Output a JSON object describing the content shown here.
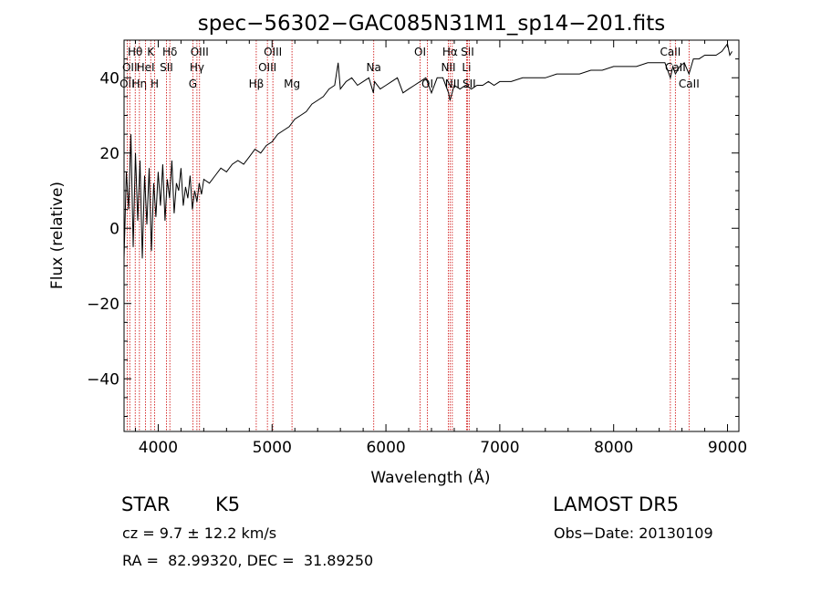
{
  "chart_data": {
    "type": "line",
    "title": "spec−56302−GAC085N31M1_sp14−201.fits",
    "xlabel": "Wavelength (Å)",
    "ylabel": "Flux (relative)",
    "xlim": [
      3700,
      9100
    ],
    "ylim": [
      -54,
      50
    ],
    "xticks": [
      {
        "value": 4000,
        "label": "4000"
      },
      {
        "value": 5000,
        "label": "5000"
      },
      {
        "value": 6000,
        "label": "6000"
      },
      {
        "value": 7000,
        "label": "7000"
      },
      {
        "value": 8000,
        "label": "8000"
      },
      {
        "value": 9000,
        "label": "9000"
      }
    ],
    "yticks": [
      {
        "value": -40,
        "label": "−40"
      },
      {
        "value": -20,
        "label": "−20"
      },
      {
        "value": 0,
        "label": "0"
      },
      {
        "value": 20,
        "label": "20"
      },
      {
        "value": 40,
        "label": "40"
      }
    ],
    "series": [
      {
        "color": "#000000",
        "x": [
          3700,
          3720,
          3740,
          3760,
          3780,
          3800,
          3820,
          3840,
          3860,
          3880,
          3900,
          3920,
          3940,
          3960,
          3980,
          4000,
          4020,
          4040,
          4060,
          4080,
          4100,
          4120,
          4140,
          4160,
          4180,
          4200,
          4220,
          4240,
          4260,
          4280,
          4300,
          4320,
          4340,
          4360,
          4380,
          4400,
          4450,
          4500,
          4550,
          4600,
          4650,
          4700,
          4750,
          4800,
          4850,
          4900,
          4950,
          5000,
          5050,
          5100,
          5150,
          5200,
          5250,
          5300,
          5350,
          5400,
          5450,
          5500,
          5550,
          5580,
          5600,
          5650,
          5700,
          5750,
          5800,
          5850,
          5890,
          5900,
          5950,
          6000,
          6050,
          6100,
          6150,
          6200,
          6250,
          6300,
          6350,
          6400,
          6450,
          6500,
          6550,
          6563,
          6600,
          6650,
          6700,
          6750,
          6800,
          6850,
          6900,
          6950,
          7000,
          7100,
          7200,
          7300,
          7400,
          7500,
          7600,
          7700,
          7800,
          7900,
          8000,
          8100,
          8200,
          8300,
          8400,
          8450,
          8498,
          8520,
          8542,
          8580,
          8620,
          8662,
          8700,
          8750,
          8800,
          8850,
          8900,
          8950,
          9000,
          9020,
          9040
        ],
        "y": [
          -8,
          15,
          5,
          25,
          -5,
          20,
          2,
          18,
          -8,
          14,
          1,
          16,
          -6,
          12,
          3,
          15,
          6,
          17,
          2,
          13,
          8,
          18,
          4,
          12,
          10,
          16,
          6,
          11,
          8,
          14,
          5,
          10,
          7,
          12,
          9,
          13,
          12,
          14,
          16,
          15,
          17,
          18,
          17,
          19,
          21,
          20,
          22,
          23,
          25,
          26,
          27,
          29,
          30,
          31,
          33,
          34,
          35,
          37,
          38,
          44,
          37,
          39,
          40,
          38,
          39,
          40,
          36,
          39,
          37,
          38,
          39,
          40,
          36,
          37,
          38,
          39,
          40,
          36,
          40,
          40,
          36,
          34,
          38,
          37,
          38,
          37,
          38,
          38,
          39,
          38,
          39,
          39,
          40,
          40,
          40,
          41,
          41,
          41,
          42,
          42,
          43,
          43,
          43,
          44,
          44,
          44,
          40,
          43,
          41,
          43,
          44,
          41,
          45,
          45,
          46,
          46,
          46,
          47,
          49,
          46,
          47
        ]
      }
    ],
    "lines": [
      {
        "x": 3727,
        "labels": [
          {
            "text": "OII",
            "row": 3
          }
        ]
      },
      {
        "x": 3750,
        "labels": [
          {
            "text": "OII",
            "row": 2
          }
        ]
      },
      {
        "x": 3798,
        "labels": [
          {
            "text": "Hθ",
            "row": 1
          }
        ]
      },
      {
        "x": 3835,
        "labels": [
          {
            "text": "Hη",
            "row": 3
          }
        ]
      },
      {
        "x": 3889,
        "labels": [
          {
            "text": "HeI",
            "row": 2
          }
        ]
      },
      {
        "x": 3934,
        "labels": [
          {
            "text": "K",
            "row": 1
          }
        ]
      },
      {
        "x": 3969,
        "labels": [
          {
            "text": "H",
            "row": 3
          }
        ]
      },
      {
        "x": 4072,
        "labels": [
          {
            "text": "SII",
            "row": 2
          }
        ]
      },
      {
        "x": 4102,
        "labels": [
          {
            "text": "Hδ",
            "row": 1
          }
        ]
      },
      {
        "x": 4304,
        "labels": [
          {
            "text": "G",
            "row": 3
          }
        ]
      },
      {
        "x": 4340,
        "labels": [
          {
            "text": "Hγ",
            "row": 2
          }
        ]
      },
      {
        "x": 4363,
        "labels": [
          {
            "text": "OIII",
            "row": 1
          }
        ]
      },
      {
        "x": 4861,
        "labels": [
          {
            "text": "Hβ",
            "row": 3
          }
        ]
      },
      {
        "x": 4959,
        "labels": [
          {
            "text": "OIII",
            "row": 2
          }
        ]
      },
      {
        "x": 5007,
        "labels": [
          {
            "text": "OIII",
            "row": 1
          }
        ]
      },
      {
        "x": 5175,
        "labels": [
          {
            "text": "Mg",
            "row": 3
          }
        ]
      },
      {
        "x": 5893,
        "labels": [
          {
            "text": "Na",
            "row": 2
          }
        ]
      },
      {
        "x": 6300,
        "labels": [
          {
            "text": "OI",
            "row": 1
          }
        ]
      },
      {
        "x": 6364,
        "labels": [
          {
            "text": "OI",
            "row": 3
          }
        ]
      },
      {
        "x": 6548,
        "labels": [
          {
            "text": "NII",
            "row": 2
          }
        ]
      },
      {
        "x": 6563,
        "labels": [
          {
            "text": "Hα",
            "row": 1
          }
        ]
      },
      {
        "x": 6583,
        "labels": [
          {
            "text": "NII",
            "row": 3
          }
        ]
      },
      {
        "x": 6708,
        "labels": [
          {
            "text": "Li",
            "row": 2
          }
        ]
      },
      {
        "x": 6716,
        "labels": [
          {
            "text": "SII",
            "row": 1
          }
        ]
      },
      {
        "x": 6731,
        "labels": [
          {
            "text": "SII",
            "row": 3
          }
        ]
      },
      {
        "x": 8498,
        "labels": [
          {
            "text": "CaII",
            "row": 1
          }
        ]
      },
      {
        "x": 8542,
        "labels": [
          {
            "text": "CaII",
            "row": 2
          }
        ]
      },
      {
        "x": 8662,
        "labels": [
          {
            "text": "CaII",
            "row": 3
          }
        ]
      }
    ]
  },
  "info": {
    "class_label": "STAR",
    "subclass": "K5",
    "survey": "LAMOST DR5",
    "cz": "cz = 9.7 ± 12.2 km/s",
    "obs_date": "Obs−Date: 20130109",
    "coords": "RA =  82.99320, DEC =  31.89250"
  },
  "colors": {
    "spectrum": "#000000",
    "lines": "#cc0000",
    "axes": "#000000"
  }
}
